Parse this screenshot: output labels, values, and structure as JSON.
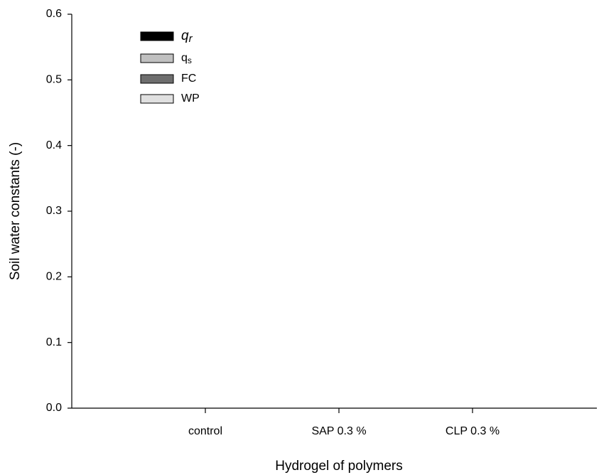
{
  "chart_data": {
    "type": "bar",
    "x_label": "Hydrogel of polymers",
    "y_label": "Soil water constants (-)",
    "categories": [
      "control",
      "SAP 0.3 %",
      "CLP 0.3 %"
    ],
    "series": [
      {
        "name": "qr",
        "color": "#000000",
        "values": [
          null,
          null,
          null
        ]
      },
      {
        "name": "qs",
        "color": "#c0c0c0",
        "values": [
          null,
          null,
          null
        ]
      },
      {
        "name": "FC",
        "color": "#6e6e6e",
        "values": [
          null,
          null,
          null
        ]
      },
      {
        "name": "WP",
        "color": "#e0e0e0",
        "values": [
          null,
          null,
          null
        ]
      }
    ],
    "ylim": [
      0,
      0.6
    ],
    "yticks": [
      {
        "value": 0,
        "label": "0.0"
      },
      0.1,
      0.2,
      0.3,
      0.4,
      0.5,
      0.6
    ],
    "legend": "upper-left",
    "grid": false
  }
}
